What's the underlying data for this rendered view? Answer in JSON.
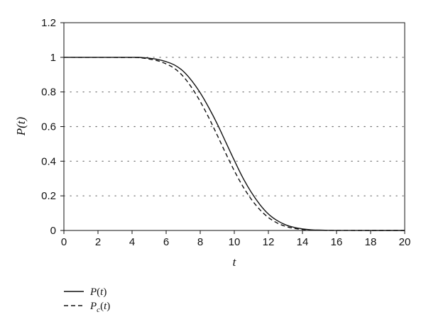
{
  "chart_data": {
    "type": "line",
    "xlabel": "t",
    "ylabel": "P(t)",
    "xlim": [
      0,
      20
    ],
    "ylim": [
      0,
      1.2
    ],
    "x_ticks": [
      "0",
      "2",
      "4",
      "6",
      "8",
      "10",
      "12",
      "14",
      "16",
      "18",
      "20"
    ],
    "y_ticks": [
      "0",
      "0.2",
      "0.4",
      "0.6",
      "0.8",
      "1",
      "1.2"
    ],
    "grid": "dotted horizontal lines at 0.2, 0.4, 0.6, 0.8, 1",
    "legend_placement": "bottom-left, below the plot",
    "series": [
      {
        "name": "P(t)",
        "style": "solid",
        "color": "#111111",
        "points": [
          [
            0,
            1
          ],
          [
            4,
            1
          ],
          [
            4.5,
            0.999
          ],
          [
            5,
            0.995
          ],
          [
            5.5,
            0.988
          ],
          [
            6,
            0.975
          ],
          [
            6.5,
            0.955
          ],
          [
            7,
            0.92
          ],
          [
            7.5,
            0.865
          ],
          [
            8,
            0.795
          ],
          [
            8.5,
            0.71
          ],
          [
            9,
            0.615
          ],
          [
            9.5,
            0.51
          ],
          [
            10,
            0.405
          ],
          [
            10.5,
            0.305
          ],
          [
            11,
            0.22
          ],
          [
            11.5,
            0.15
          ],
          [
            12,
            0.095
          ],
          [
            12.5,
            0.058
          ],
          [
            13,
            0.033
          ],
          [
            13.5,
            0.018
          ],
          [
            14,
            0.009
          ],
          [
            14.5,
            0.004
          ],
          [
            15,
            0.002
          ],
          [
            15.5,
            0.0008
          ],
          [
            16,
            0.0003
          ],
          [
            17,
            0.0001
          ],
          [
            20,
            0
          ]
        ]
      },
      {
        "name": "P_c(t)",
        "style": "dashed",
        "color": "#111111",
        "points": [
          [
            0,
            1
          ],
          [
            4,
            0.999
          ],
          [
            4.5,
            0.997
          ],
          [
            5,
            0.99
          ],
          [
            5.5,
            0.98
          ],
          [
            6,
            0.962
          ],
          [
            6.5,
            0.935
          ],
          [
            7,
            0.89
          ],
          [
            7.5,
            0.825
          ],
          [
            8,
            0.745
          ],
          [
            8.5,
            0.652
          ],
          [
            9,
            0.55
          ],
          [
            9.5,
            0.445
          ],
          [
            10,
            0.345
          ],
          [
            10.5,
            0.255
          ],
          [
            11,
            0.18
          ],
          [
            11.5,
            0.12
          ],
          [
            12,
            0.075
          ],
          [
            12.5,
            0.044
          ],
          [
            13,
            0.024
          ],
          [
            13.5,
            0.012
          ],
          [
            14,
            0.006
          ],
          [
            14.5,
            0.0025
          ],
          [
            15,
            0.001
          ],
          [
            15.5,
            0.0003
          ],
          [
            16,
            0.0001
          ],
          [
            20,
            0
          ]
        ]
      }
    ],
    "legend": [
      {
        "series": "P(t)",
        "base": "P",
        "sub": "",
        "arg": "(t)",
        "style": "solid"
      },
      {
        "series": "P_c(t)",
        "base": "P",
        "sub": "c",
        "arg": "(t)",
        "style": "dashed"
      }
    ]
  }
}
